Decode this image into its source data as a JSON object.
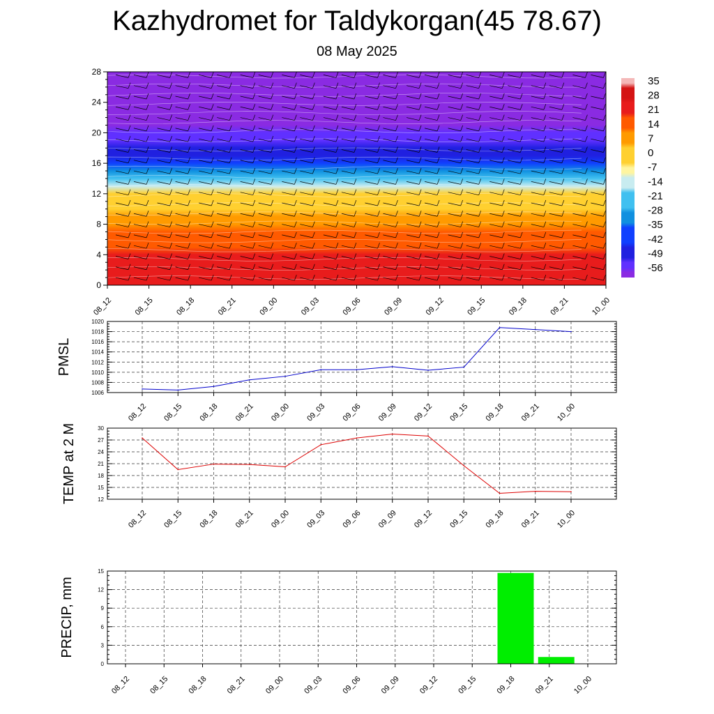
{
  "header": {
    "title": "Kazhydromet for Taldykorgan(45 78.67)",
    "subtitle": "08 May 2025"
  },
  "colors": {
    "pmsl_line": "#0000cc",
    "temp_line": "#dd0000",
    "precip_bar": "#00ee00",
    "grid": "#333333",
    "wind_barb": "#000000",
    "contour_line": "#ffffff"
  },
  "chart_data": [
    {
      "id": "cross-section",
      "type": "heatmap",
      "title": "",
      "xlabel": "",
      "ylabel": "",
      "x_categories": [
        "08_12",
        "08_15",
        "08_18",
        "08_21",
        "09_00",
        "09_03",
        "09_06",
        "09_09",
        "09_12",
        "09_15",
        "09_18",
        "09_21",
        "10_00"
      ],
      "y_ticks": [
        0,
        4,
        8,
        12,
        16,
        20,
        24,
        28
      ],
      "ylim": [
        0,
        28
      ],
      "colorbar": {
        "labels": [
          "35",
          "28",
          "21",
          "14",
          "7",
          "0",
          "-7",
          "-14",
          "-21",
          "-28",
          "-35",
          "-42",
          "-49",
          "-56"
        ],
        "range": [
          -60,
          38
        ],
        "stops": [
          {
            "v": 38,
            "c": "#f4b8b8"
          },
          {
            "v": 32,
            "c": "#d41414"
          },
          {
            "v": 24,
            "c": "#e81c1c"
          },
          {
            "v": 16,
            "c": "#ff5a00"
          },
          {
            "v": 8,
            "c": "#ff9a00"
          },
          {
            "v": 0,
            "c": "#ffd030"
          },
          {
            "v": -8,
            "c": "#fff5a0"
          },
          {
            "v": -14,
            "c": "#c8ecf0"
          },
          {
            "v": -22,
            "c": "#40c0f0"
          },
          {
            "v": -30,
            "c": "#1090e0"
          },
          {
            "v": -38,
            "c": "#1040ff"
          },
          {
            "v": -48,
            "c": "#2020e0"
          },
          {
            "v": -54,
            "c": "#6030ff"
          },
          {
            "v": -60,
            "c": "#8a2be2"
          }
        ]
      },
      "temperature_profile": {
        "levels": [
          0,
          4,
          8,
          10,
          12,
          13,
          14,
          16,
          18,
          20,
          22,
          24,
          28
        ],
        "values": [
          28,
          22,
          10,
          3,
          -2,
          -12,
          -22,
          -36,
          -50,
          -56,
          -58,
          -58,
          -58
        ]
      },
      "wind_barbs": "shown"
    },
    {
      "id": "pmsl",
      "type": "line",
      "ylabel": "PMSL",
      "categories": [
        "08_12",
        "08_15",
        "08_18",
        "08_21",
        "09_00",
        "09_03",
        "09_06",
        "09_09",
        "09_12",
        "09_15",
        "09_18",
        "09_21",
        "10_00"
      ],
      "values": [
        1006.7,
        1006.5,
        1007.2,
        1008.5,
        1009.2,
        1010.5,
        1010.5,
        1011.1,
        1010.4,
        1011.0,
        1018.8,
        1018.4,
        1018.0
      ],
      "ylim": [
        1006,
        1020
      ],
      "yticks": [
        1006,
        1008,
        1010,
        1012,
        1014,
        1016,
        1018,
        1020
      ],
      "grid": true
    },
    {
      "id": "temp",
      "type": "line",
      "ylabel": "TEMP at 2 M",
      "categories": [
        "08_12",
        "08_15",
        "08_18",
        "08_21",
        "09_00",
        "09_03",
        "09_06",
        "09_09",
        "09_12",
        "09_15",
        "09_18",
        "09_21",
        "10_00"
      ],
      "values": [
        27.5,
        19.5,
        20.9,
        20.8,
        20.2,
        25.8,
        27.5,
        28.5,
        28.0,
        20.5,
        13.5,
        14.0,
        13.9
      ],
      "ylim": [
        12,
        30
      ],
      "yticks": [
        12,
        15,
        18,
        21,
        24,
        27,
        30
      ],
      "grid": true
    },
    {
      "id": "precip",
      "type": "bar",
      "ylabel": "PRECIP, mm",
      "categories": [
        "08_12",
        "08_15",
        "08_18",
        "08_21",
        "09_00",
        "09_03",
        "09_06",
        "09_09",
        "09_12",
        "09_15",
        "09_18",
        "09_21",
        "10_00"
      ],
      "values": [
        0,
        0,
        0,
        0,
        0,
        0,
        0,
        0,
        0,
        0,
        14.7,
        1.1,
        0.05
      ],
      "ylim": [
        0,
        15
      ],
      "yticks": [
        0,
        3,
        6,
        9,
        12,
        15
      ],
      "grid": true
    }
  ]
}
